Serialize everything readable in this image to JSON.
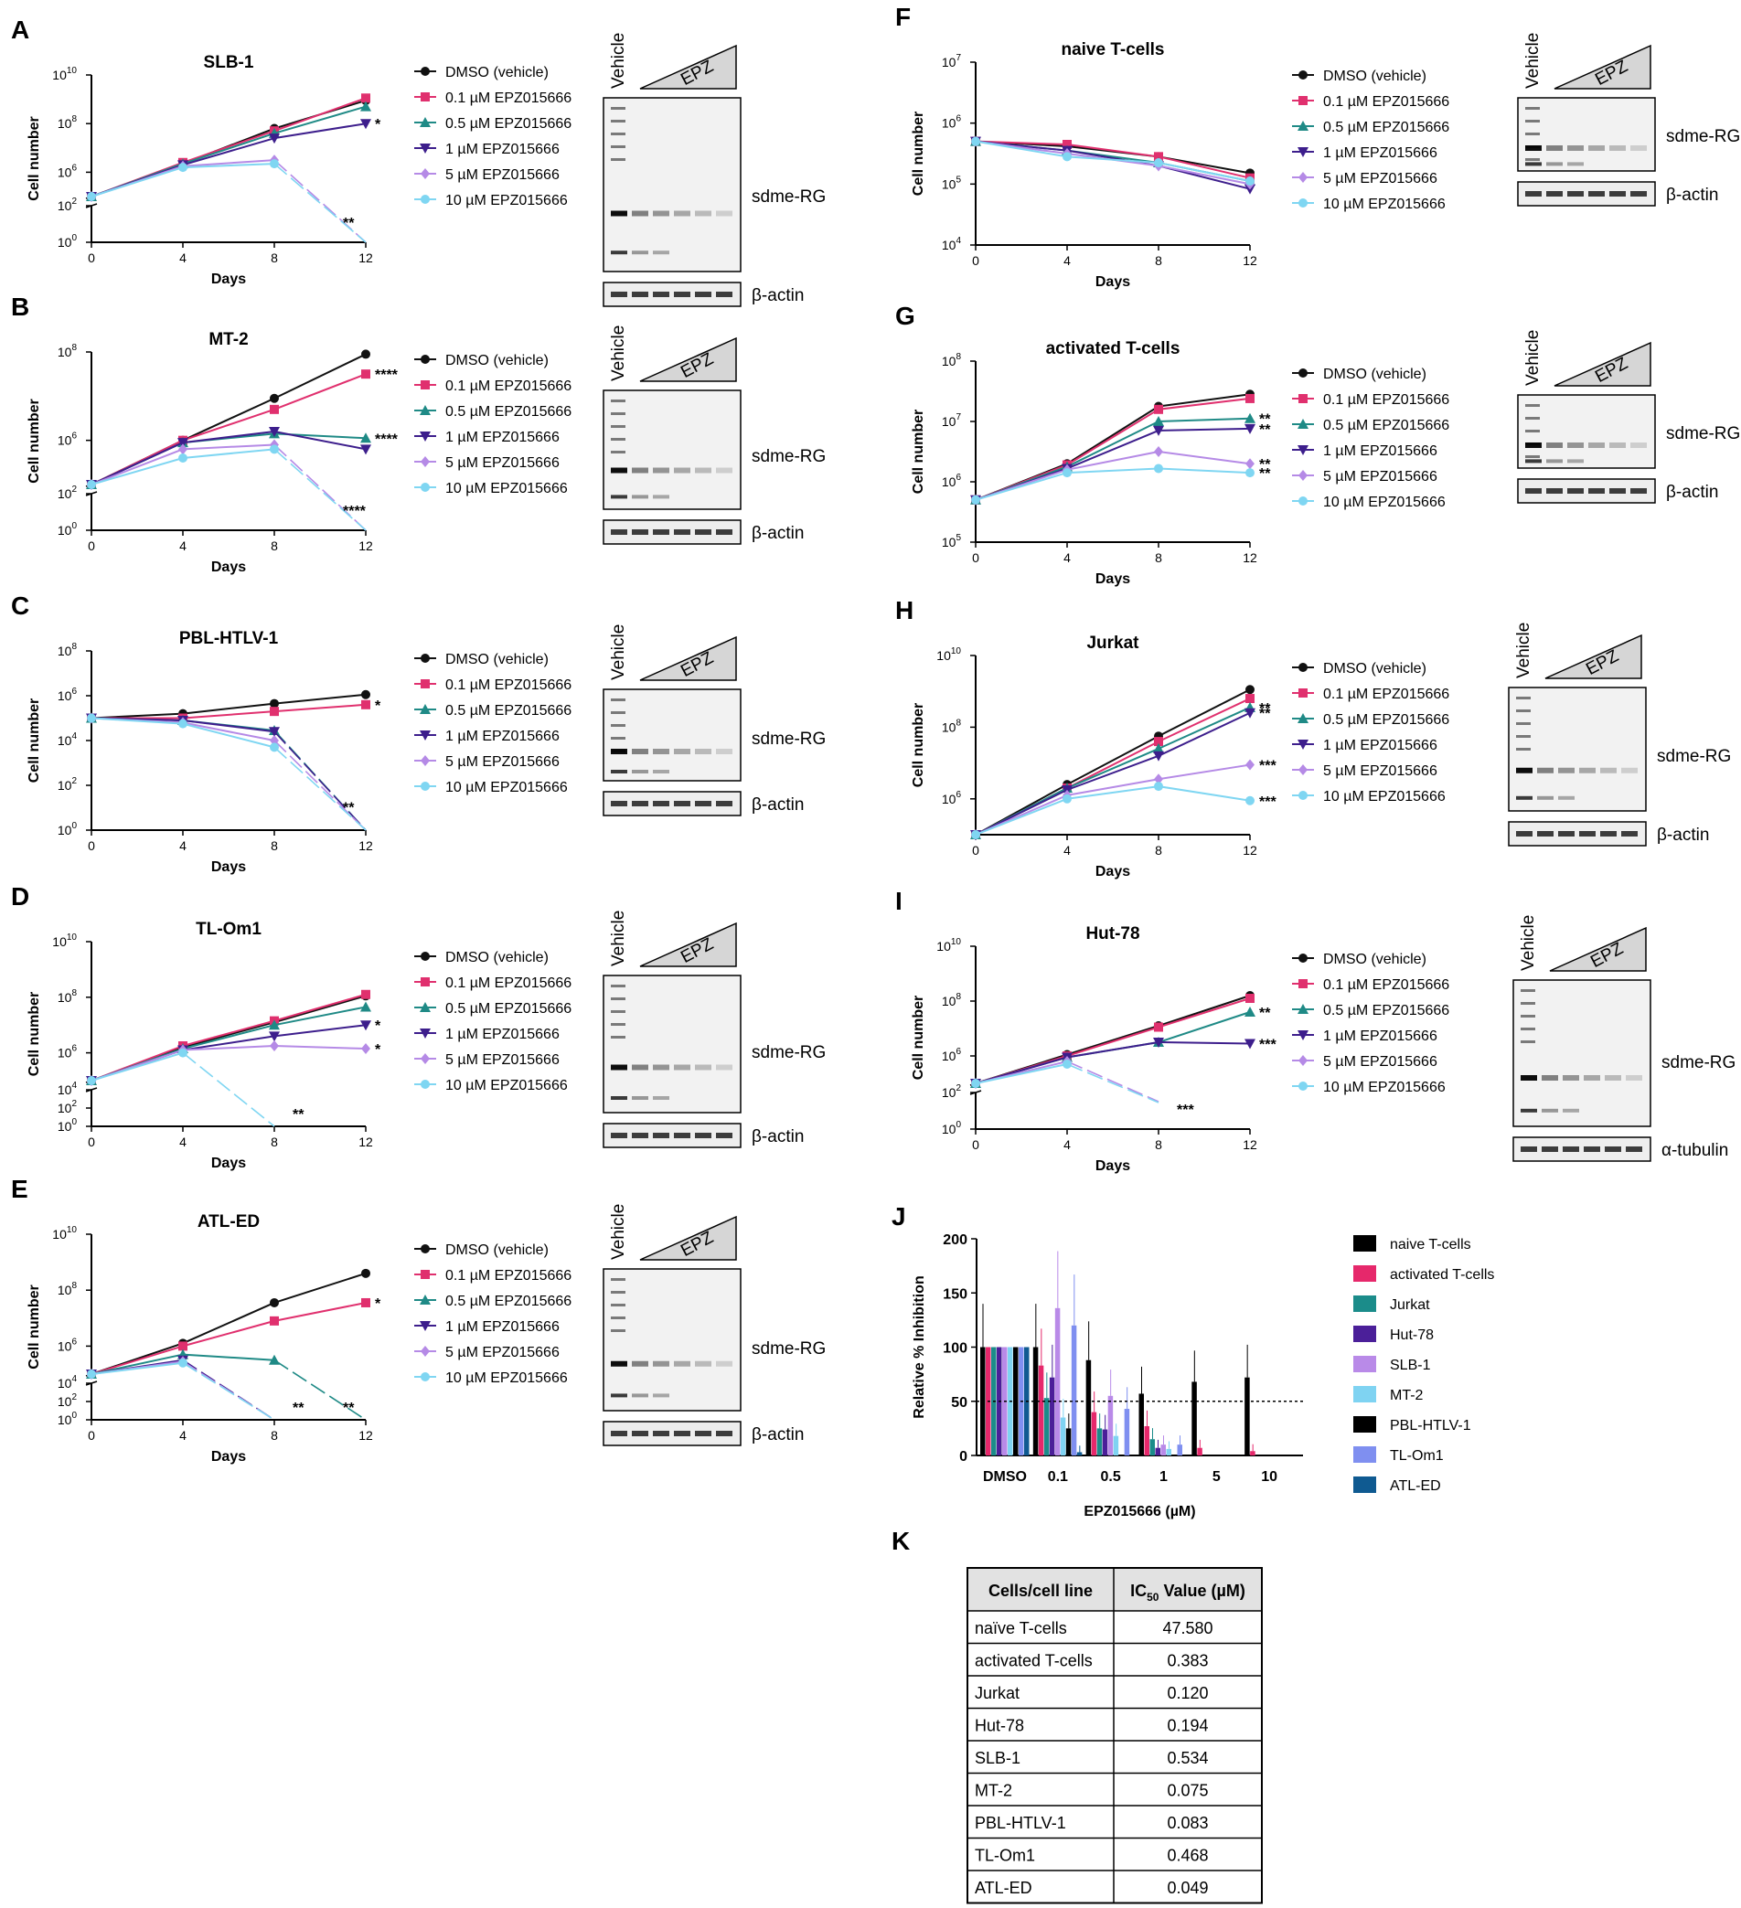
{
  "figure": {
    "colors": {
      "dmso": "#111111",
      "c01": "#e0306e",
      "c05": "#1f8a86",
      "c1": "#3d1e8c",
      "c5": "#b58ae6",
      "c10": "#7fd6f2"
    },
    "series_names": [
      "DMSO (vehicle)",
      "0.1 µM EPZ015666",
      "0.5 µM EPZ015666",
      "1 µM EPZ015666",
      "5 µM EPZ015666",
      "10 µM EPZ015666"
    ],
    "markers": [
      "circle",
      "square",
      "triangle",
      "tri-down",
      "diamond",
      "circle"
    ]
  },
  "chart_data": [
    {
      "id": "A",
      "type": "line",
      "title": "SLB-1",
      "xlabel": "Days",
      "ylabel": "Cell number",
      "x": [
        0,
        4,
        8,
        12
      ],
      "ylim_log": [
        0,
        10
      ],
      "yticks": [
        "10^0",
        "10^2",
        "10^6",
        "10^8",
        "10^10"
      ],
      "xticks": [
        "0",
        "4",
        "8",
        "12"
      ],
      "series": [
        {
          "name": "DMSO (vehicle)",
          "values": [
            5,
            6.35,
            7.8,
            8.95
          ]
        },
        {
          "name": "0.1 µM EPZ015666",
          "values": [
            5,
            6.4,
            7.7,
            9.05
          ]
        },
        {
          "name": "0.5 µM EPZ015666",
          "values": [
            5,
            6.35,
            7.6,
            8.7
          ]
        },
        {
          "name": "1 µM EPZ015666",
          "values": [
            5,
            6.3,
            7.4,
            8.0
          ]
        },
        {
          "name": "5 µM EPZ015666",
          "values": [
            5,
            6.25,
            6.5,
            0
          ]
        },
        {
          "name": "10 µM EPZ015666",
          "values": [
            5,
            6.2,
            6.35,
            0
          ]
        }
      ],
      "annotations": [
        {
          "text": "*",
          "series": 3
        },
        {
          "text": "**",
          "series": 5
        }
      ],
      "blot": {
        "vehicle": "Vehicle",
        "epz": "EPZ",
        "band1": "sdme-RG",
        "band2": "β-actin"
      }
    },
    {
      "id": "B",
      "type": "line",
      "title": "MT-2",
      "xlabel": "Days",
      "ylabel": "Cell number",
      "x": [
        0,
        4,
        8,
        12
      ],
      "ylim_log": [
        0,
        8
      ],
      "yticks": [
        "10^0",
        "10^2",
        "10^6",
        "10^8"
      ],
      "xticks": [
        "0",
        "4",
        "8",
        "12"
      ],
      "series": [
        {
          "name": "DMSO (vehicle)",
          "values": [
            5,
            6.0,
            6.95,
            7.95
          ]
        },
        {
          "name": "0.1 µM EPZ015666",
          "values": [
            5,
            6.0,
            6.7,
            7.5
          ]
        },
        {
          "name": "0.5 µM EPZ015666",
          "values": [
            5,
            5.95,
            6.15,
            6.05
          ]
        },
        {
          "name": "1 µM EPZ015666",
          "values": [
            5,
            5.95,
            6.2,
            5.8
          ]
        },
        {
          "name": "5 µM EPZ015666",
          "values": [
            5,
            5.8,
            5.9,
            0
          ]
        },
        {
          "name": "10 µM EPZ015666",
          "values": [
            5,
            5.6,
            5.8,
            0
          ]
        }
      ],
      "annotations": [
        {
          "text": "****",
          "series": 1
        },
        {
          "text": "****",
          "series": 2
        },
        {
          "text": "****",
          "series": 5
        }
      ],
      "blot": {
        "vehicle": "Vehicle",
        "epz": "EPZ",
        "band1": "sdme-RG",
        "band2": "β-actin"
      }
    },
    {
      "id": "C",
      "type": "line",
      "title": "PBL-HTLV-1",
      "xlabel": "Days",
      "ylabel": "Cell number",
      "x": [
        0,
        4,
        8,
        12
      ],
      "ylim_log": [
        0,
        8
      ],
      "yticks": [
        "10^0",
        "10^2",
        "10^4",
        "10^6",
        "10^8"
      ],
      "xticks": [
        "0",
        "4",
        "8",
        "12"
      ],
      "series": [
        {
          "name": "DMSO (vehicle)",
          "values": [
            5,
            5.2,
            5.65,
            6.05
          ]
        },
        {
          "name": "0.1 µM EPZ015666",
          "values": [
            5,
            5.0,
            5.3,
            5.6
          ]
        },
        {
          "name": "0.5 µM EPZ015666",
          "values": [
            5,
            4.9,
            4.45,
            0
          ]
        },
        {
          "name": "1 µM EPZ015666",
          "values": [
            5,
            4.9,
            4.4,
            0
          ]
        },
        {
          "name": "5 µM EPZ015666",
          "values": [
            5,
            4.8,
            4.0,
            0
          ]
        },
        {
          "name": "10 µM EPZ015666",
          "values": [
            5,
            4.75,
            3.7,
            0
          ]
        }
      ],
      "annotations": [
        {
          "text": "*",
          "series": 1
        },
        {
          "text": "**",
          "series": 5
        }
      ],
      "blot": {
        "vehicle": "Vehicle",
        "epz": "EPZ",
        "band1": "sdme-RG",
        "band2": "β-actin"
      }
    },
    {
      "id": "D",
      "type": "line",
      "title": "TL-Om1",
      "xlabel": "Days",
      "ylabel": "Cell number",
      "x": [
        0,
        4,
        8,
        12
      ],
      "ylim_log": [
        0,
        10
      ],
      "yticks": [
        "10^0",
        "10^2",
        "10^4",
        "10^6",
        "10^8",
        "10^10"
      ],
      "xticks": [
        "0",
        "4",
        "8",
        "12"
      ],
      "series": [
        {
          "name": "DMSO (vehicle)",
          "values": [
            5,
            6.2,
            7.1,
            8.05
          ]
        },
        {
          "name": "0.1 µM EPZ015666",
          "values": [
            5,
            6.25,
            7.15,
            8.1
          ]
        },
        {
          "name": "0.5 µM EPZ015666",
          "values": [
            5,
            6.15,
            7.0,
            7.65
          ]
        },
        {
          "name": "1 µM EPZ015666",
          "values": [
            5,
            6.1,
            6.6,
            7.0
          ]
        },
        {
          "name": "5 µM EPZ015666",
          "values": [
            5,
            6.1,
            6.25,
            6.15
          ]
        },
        {
          "name": "10 µM EPZ015666",
          "values": [
            5,
            6.0,
            0,
            null
          ]
        }
      ],
      "annotations": [
        {
          "text": "*",
          "series": 3
        },
        {
          "text": "*",
          "series": 4
        },
        {
          "text": "**",
          "series": 5
        }
      ],
      "blot": {
        "vehicle": "Vehicle",
        "epz": "EPZ",
        "band1": "sdme-RG",
        "band2": "β-actin"
      }
    },
    {
      "id": "E",
      "type": "line",
      "title": "ATL-ED",
      "xlabel": "Days",
      "ylabel": "Cell number",
      "x": [
        0,
        4,
        8,
        12
      ],
      "ylim_log": [
        0,
        10
      ],
      "yticks": [
        "10^0",
        "10^2",
        "10^4",
        "10^6",
        "10^8",
        "10^10"
      ],
      "xticks": [
        "0",
        "4",
        "8",
        "12"
      ],
      "series": [
        {
          "name": "DMSO (vehicle)",
          "values": [
            5,
            6.1,
            7.55,
            8.6
          ]
        },
        {
          "name": "0.1 µM EPZ015666",
          "values": [
            5,
            6.0,
            6.9,
            7.55
          ]
        },
        {
          "name": "0.5 µM EPZ015666",
          "values": [
            5,
            5.7,
            5.5,
            0
          ]
        },
        {
          "name": "1 µM EPZ015666",
          "values": [
            5,
            5.5,
            0,
            null
          ]
        },
        {
          "name": "5 µM EPZ015666",
          "values": [
            5,
            5.45,
            0,
            null
          ]
        },
        {
          "name": "10 µM EPZ015666",
          "values": [
            5,
            5.4,
            0,
            null
          ]
        }
      ],
      "annotations": [
        {
          "text": "*",
          "series": 1
        },
        {
          "text": "**",
          "series": 4
        },
        {
          "text": "**",
          "series": 2
        }
      ],
      "blot": {
        "vehicle": "Vehicle",
        "epz": "EPZ",
        "band1": "sdme-RG",
        "band2": "β-actin"
      }
    },
    {
      "id": "F",
      "type": "line",
      "title": "naive T-cells",
      "xlabel": "Days",
      "ylabel": "Cell number",
      "x": [
        0,
        4,
        8,
        12
      ],
      "ylim_log": [
        4,
        7
      ],
      "yticks": [
        "10^4",
        "10^5",
        "10^6",
        "10^7"
      ],
      "xticks": [
        "0",
        "4",
        "8",
        "12"
      ],
      "series": [
        {
          "name": "DMSO (vehicle)",
          "values": [
            5.7,
            5.62,
            5.45,
            5.18
          ]
        },
        {
          "name": "0.1 µM EPZ015666",
          "values": [
            5.7,
            5.65,
            5.45,
            5.1
          ]
        },
        {
          "name": "0.5 µM EPZ015666",
          "values": [
            5.7,
            5.55,
            5.35,
            5.05
          ]
        },
        {
          "name": "1 µM EPZ015666",
          "values": [
            5.7,
            5.55,
            5.3,
            4.92
          ]
        },
        {
          "name": "5 µM EPZ015666",
          "values": [
            5.7,
            5.5,
            5.3,
            5.0
          ]
        },
        {
          "name": "10 µM EPZ015666",
          "values": [
            5.7,
            5.45,
            5.35,
            5.05
          ]
        }
      ],
      "annotations": [],
      "blot": {
        "vehicle": "Vehicle",
        "epz": "EPZ",
        "band1": "sdme-RG",
        "band2": "β-actin"
      }
    },
    {
      "id": "G",
      "type": "line",
      "title": "activated T-cells",
      "xlabel": "Days",
      "ylabel": "Cell number",
      "x": [
        0,
        4,
        8,
        12
      ],
      "ylim_log": [
        5,
        8
      ],
      "yticks": [
        "10^5",
        "10^6",
        "10^7",
        "10^8"
      ],
      "xticks": [
        "0",
        "4",
        "8",
        "12"
      ],
      "series": [
        {
          "name": "DMSO (vehicle)",
          "values": [
            5.7,
            6.3,
            7.25,
            7.45
          ]
        },
        {
          "name": "0.1 µM EPZ015666",
          "values": [
            5.7,
            6.28,
            7.2,
            7.38
          ]
        },
        {
          "name": "0.5 µM EPZ015666",
          "values": [
            5.7,
            6.25,
            7.0,
            7.05
          ]
        },
        {
          "name": "1 µM EPZ015666",
          "values": [
            5.7,
            6.22,
            6.85,
            6.88
          ]
        },
        {
          "name": "5 µM EPZ015666",
          "values": [
            5.7,
            6.2,
            6.5,
            6.3
          ]
        },
        {
          "name": "10 µM EPZ015666",
          "values": [
            5.7,
            6.15,
            6.22,
            6.15
          ]
        }
      ],
      "annotations": [
        {
          "text": "**",
          "series": 2
        },
        {
          "text": "**",
          "series": 3
        },
        {
          "text": "**",
          "series": 4
        },
        {
          "text": "**",
          "series": 5
        }
      ],
      "blot": {
        "vehicle": "Vehicle",
        "epz": "EPZ",
        "band1": "sdme-RG",
        "band2": "β-actin"
      }
    },
    {
      "id": "H",
      "type": "line",
      "title": "Jurkat",
      "xlabel": "Days",
      "ylabel": "Cell number",
      "x": [
        0,
        4,
        8,
        12
      ],
      "ylim_log": [
        5,
        10
      ],
      "yticks": [
        "10^6",
        "10^8",
        "10^10"
      ],
      "xticks": [
        "0",
        "4",
        "8",
        "12"
      ],
      "series": [
        {
          "name": "DMSO (vehicle)",
          "values": [
            5,
            6.4,
            7.75,
            9.05
          ]
        },
        {
          "name": "0.1 µM EPZ015666",
          "values": [
            5,
            6.3,
            7.6,
            8.8
          ]
        },
        {
          "name": "0.5 µM EPZ015666",
          "values": [
            5,
            6.3,
            7.4,
            8.55
          ]
        },
        {
          "name": "1 µM EPZ015666",
          "values": [
            5,
            6.25,
            7.2,
            8.4
          ]
        },
        {
          "name": "5 µM EPZ015666",
          "values": [
            5,
            6.1,
            6.55,
            6.95
          ]
        },
        {
          "name": "10 µM EPZ015666",
          "values": [
            5,
            6.0,
            6.35,
            5.95
          ]
        }
      ],
      "annotations": [
        {
          "text": "**",
          "series": 2
        },
        {
          "text": "**",
          "series": 3
        },
        {
          "text": "***",
          "series": 4
        },
        {
          "text": "***",
          "series": 5
        }
      ],
      "blot": {
        "vehicle": "Vehicle",
        "epz": "EPZ",
        "band1": "sdme-RG",
        "band2": "β-actin"
      }
    },
    {
      "id": "I",
      "type": "line",
      "title": "Hut-78",
      "xlabel": "Days",
      "ylabel": "Cell number",
      "x": [
        0,
        4,
        8,
        12
      ],
      "ylim_log": [
        0,
        10
      ],
      "yticks": [
        "10^0",
        "10^2",
        "10^6",
        "10^8",
        "10^10"
      ],
      "xticks": [
        "0",
        "4",
        "8",
        "12"
      ],
      "series": [
        {
          "name": "DMSO (vehicle)",
          "values": [
            5,
            6.05,
            7.1,
            8.2
          ]
        },
        {
          "name": "0.1 µM EPZ015666",
          "values": [
            5,
            6.0,
            7.05,
            8.1
          ]
        },
        {
          "name": "0.5 µM EPZ015666",
          "values": [
            5,
            5.95,
            6.5,
            7.6
          ]
        },
        {
          "name": "1 µM EPZ015666",
          "values": [
            5,
            5.95,
            6.5,
            6.45
          ]
        },
        {
          "name": "5 µM EPZ015666",
          "values": [
            5,
            5.8,
            1.5,
            null
          ]
        },
        {
          "name": "10 µM EPZ015666",
          "values": [
            5,
            5.7,
            1.45,
            null
          ]
        }
      ],
      "annotations": [
        {
          "text": "**",
          "series": 2
        },
        {
          "text": "***",
          "series": 3
        },
        {
          "text": "***",
          "series": 5
        }
      ],
      "blot": {
        "vehicle": "Vehicle",
        "epz": "EPZ",
        "band1": "sdme-RG",
        "band2": "α-tubulin"
      }
    },
    {
      "id": "J",
      "type": "bar",
      "title": "",
      "xlabel": "EPZ015666 (µM)",
      "ylabel": "Relative % Inhibition",
      "categories": [
        "DMSO",
        "0.1",
        "0.5",
        "1",
        "5",
        "10"
      ],
      "ylim": [
        0,
        200
      ],
      "yticks": [
        "0",
        "50",
        "100",
        "150",
        "200"
      ],
      "reference_line": 50,
      "series": [
        {
          "name": "naive T-cells",
          "color": "#000000",
          "values": [
            100,
            100,
            88,
            57,
            68,
            72
          ]
        },
        {
          "name": "activated T-cells",
          "color": "#e6286b",
          "values": [
            100,
            83,
            40,
            27,
            7,
            4
          ]
        },
        {
          "name": "Jurkat",
          "color": "#1b8c8a",
          "values": [
            100,
            53,
            25,
            15,
            0,
            0
          ]
        },
        {
          "name": "Hut-78",
          "color": "#4b1f99",
          "values": [
            100,
            72,
            24,
            7,
            0,
            0
          ]
        },
        {
          "name": "SLB-1",
          "color": "#b98ae8",
          "values": [
            100,
            136,
            55,
            10,
            0,
            0
          ]
        },
        {
          "name": "MT-2",
          "color": "#7fd3f2",
          "values": [
            100,
            35,
            18,
            6,
            0,
            0
          ]
        },
        {
          "name": "PBL-HTLV-1",
          "color": "#000000",
          "values": [
            100,
            25,
            0,
            0,
            0,
            0
          ]
        },
        {
          "name": "TL-Om1",
          "color": "#7f8ff0",
          "values": [
            100,
            120,
            43,
            10,
            0,
            0
          ]
        },
        {
          "name": "ATL-ED",
          "color": "#0f5a91",
          "values": [
            100,
            3,
            0,
            0,
            0,
            0
          ]
        }
      ]
    }
  ],
  "table": {
    "panel": "K",
    "headers": [
      "Cells/cell line",
      "IC50 Value (µM)"
    ],
    "header2_main": "IC",
    "header2_sub": "50",
    "header2_rest": " Value (µM)",
    "rows": [
      [
        "naïve T-cells",
        "47.580"
      ],
      [
        "activated T-cells",
        "0.383"
      ],
      [
        "Jurkat",
        "0.120"
      ],
      [
        "Hut-78",
        "0.194"
      ],
      [
        "SLB-1",
        "0.534"
      ],
      [
        "MT-2",
        "0.075"
      ],
      [
        "PBL-HTLV-1",
        "0.083"
      ],
      [
        "TL-Om1",
        "0.468"
      ],
      [
        "ATL-ED",
        "0.049"
      ]
    ]
  }
}
